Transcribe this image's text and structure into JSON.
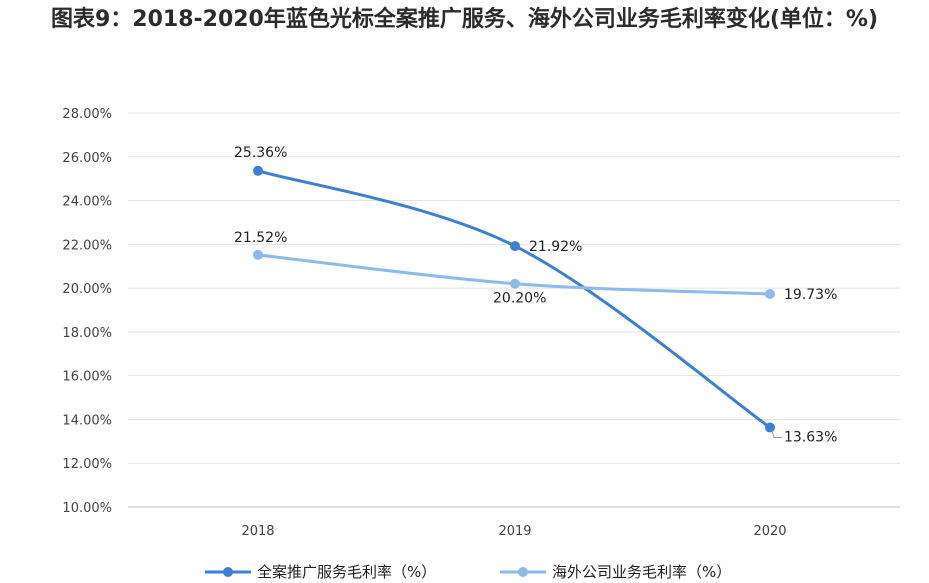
{
  "chart_data": {
    "type": "line",
    "title": "图表9：2018-2020年蓝色光标全案推广服务、海外公司业务毛利率变化(单位：%)",
    "categories": [
      "2018",
      "2019",
      "2020"
    ],
    "ylim": [
      10,
      28
    ],
    "yticks": [
      "28.00%",
      "26.00%",
      "24.00%",
      "22.00%",
      "20.00%",
      "18.00%",
      "16.00%",
      "14.00%",
      "12.00%",
      "10.00%"
    ],
    "grid": true,
    "legend_position": "bottom",
    "series": [
      {
        "name": "全案推广服务毛利率（%）",
        "values": [
          25.36,
          21.92,
          13.63
        ],
        "labels": [
          "25.36%",
          "21.92%",
          "13.63%"
        ],
        "color": "#3d7fd1"
      },
      {
        "name": "海外公司业务毛利率（%）",
        "values": [
          21.52,
          20.2,
          19.73
        ],
        "labels": [
          "21.52%",
          "20.20%",
          "19.73%"
        ],
        "color": "#8fb9ea"
      }
    ]
  }
}
